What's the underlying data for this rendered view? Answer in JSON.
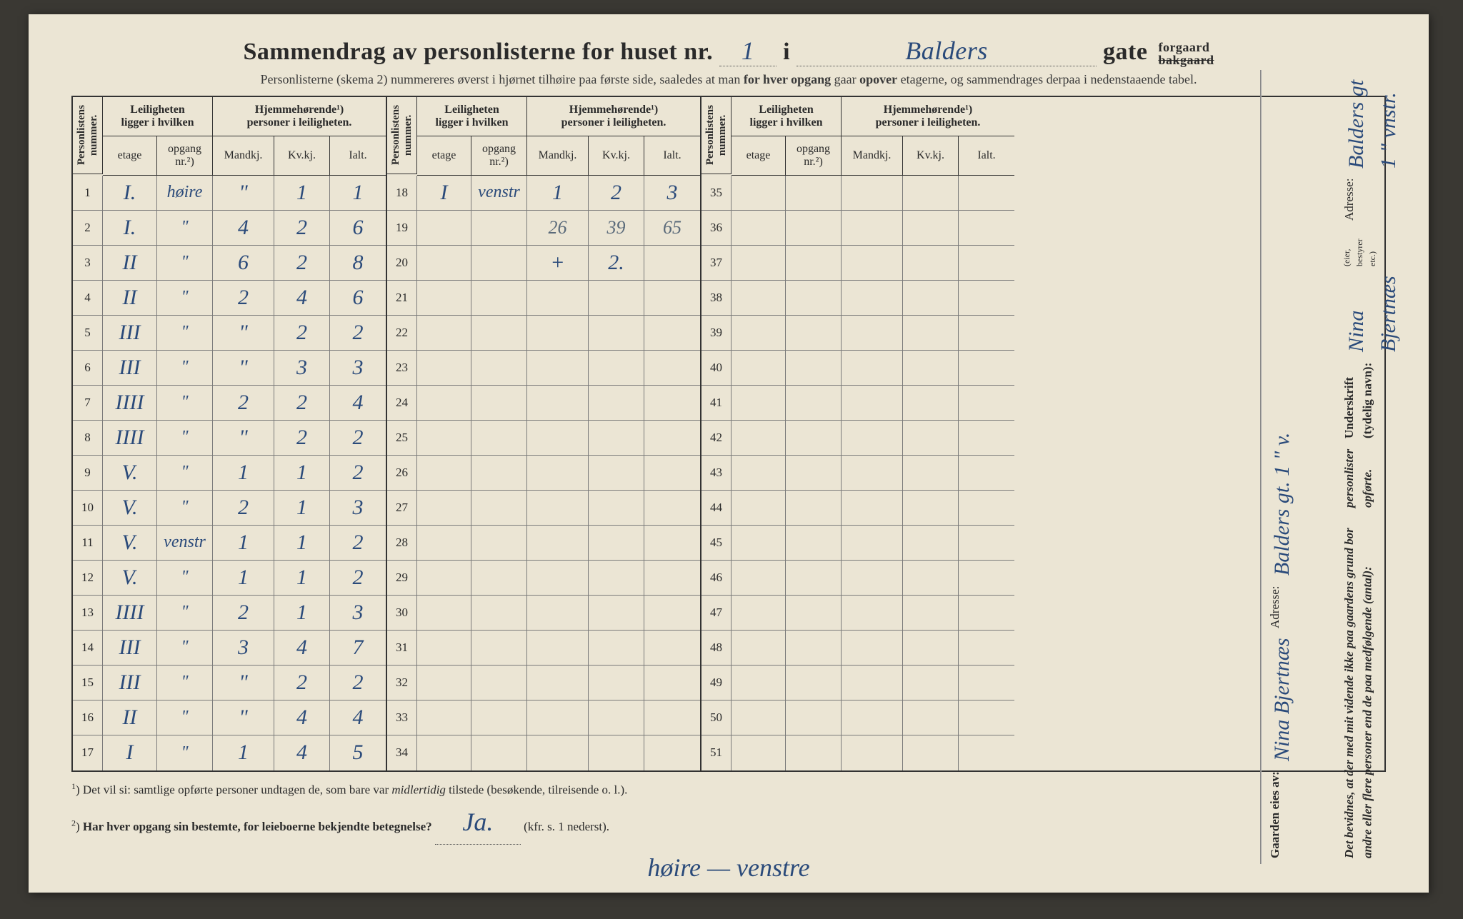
{
  "header": {
    "title_prefix": "Sammendrag av personlisterne for huset nr.",
    "house_nr": "1",
    "middle_word": "i",
    "street": "Balders",
    "gate_word": "gate",
    "suffix_top": "forgaard",
    "suffix_bottom": "bakgaard",
    "subtitle_1": "Personlisterne (skema 2) nummereres øverst i hjørnet tilhøire paa første side, saaledes at man ",
    "subtitle_bold_1": "for hver opgang",
    "subtitle_2": " gaar ",
    "subtitle_bold_2": "opover",
    "subtitle_3": " etagerne, og sammendrages derpaa i nedenstaaende tabel."
  },
  "columns": {
    "personlistens": "Personlistens\nnummer.",
    "leiligheten_group": "Leiligheten\nligger i hvilken",
    "hjemme_group": "Hjemmehørende¹)\npersoner i leiligheten.",
    "etage": "etage",
    "opgang": "opgang\nnr.²)",
    "mandkj": "Mandkj.",
    "kvkj": "Kv.kj.",
    "ialt": "Ialt."
  },
  "blocks": [
    {
      "start": 1,
      "rows": [
        {
          "n": "1",
          "et": "I.",
          "op": "høire",
          "mk": "\"",
          "kv": "1",
          "ia": "1"
        },
        {
          "n": "2",
          "et": "I.",
          "op": "\"",
          "mk": "4",
          "kv": "2",
          "ia": "6"
        },
        {
          "n": "3",
          "et": "II",
          "op": "\"",
          "mk": "6",
          "kv": "2",
          "ia": "8"
        },
        {
          "n": "4",
          "et": "II",
          "op": "\"",
          "mk": "2",
          "kv": "4",
          "ia": "6"
        },
        {
          "n": "5",
          "et": "III",
          "op": "\"",
          "mk": "\"",
          "kv": "2",
          "ia": "2"
        },
        {
          "n": "6",
          "et": "III",
          "op": "\"",
          "mk": "\"",
          "kv": "3",
          "ia": "3"
        },
        {
          "n": "7",
          "et": "IIII",
          "op": "\"",
          "mk": "2",
          "kv": "2",
          "ia": "4"
        },
        {
          "n": "8",
          "et": "IIII",
          "op": "\"",
          "mk": "\"",
          "kv": "2",
          "ia": "2"
        },
        {
          "n": "9",
          "et": "V.",
          "op": "\"",
          "mk": "1",
          "kv": "1",
          "ia": "2"
        },
        {
          "n": "10",
          "et": "V.",
          "op": "\"",
          "mk": "2",
          "kv": "1",
          "ia": "3"
        },
        {
          "n": "11",
          "et": "V.",
          "op": "venstr",
          "mk": "1",
          "kv": "1",
          "ia": "2"
        },
        {
          "n": "12",
          "et": "V.",
          "op": "\"",
          "mk": "1",
          "kv": "1",
          "ia": "2"
        },
        {
          "n": "13",
          "et": "IIII",
          "op": "\"",
          "mk": "2",
          "kv": "1",
          "ia": "3"
        },
        {
          "n": "14",
          "et": "III",
          "op": "\"",
          "mk": "3",
          "kv": "4",
          "ia": "7"
        },
        {
          "n": "15",
          "et": "III",
          "op": "\"",
          "mk": "\"",
          "kv": "2",
          "ia": "2"
        },
        {
          "n": "16",
          "et": "II",
          "op": "\"",
          "mk": "\"",
          "kv": "4",
          "ia": "4"
        },
        {
          "n": "17",
          "et": "I",
          "op": "\"",
          "mk": "1",
          "kv": "4",
          "ia": "5"
        }
      ]
    },
    {
      "start": 18,
      "rows": [
        {
          "n": "18",
          "et": "I",
          "op": "venstr",
          "mk": "1",
          "kv": "2",
          "ia": "3"
        },
        {
          "n": "19",
          "et": "",
          "op": "",
          "mk": "26",
          "kv": "39",
          "ia": "65",
          "sum": true
        },
        {
          "n": "20",
          "et": "",
          "op": "",
          "mk": "+",
          "kv": "2.",
          "ia": ""
        },
        {
          "n": "21"
        },
        {
          "n": "22"
        },
        {
          "n": "23"
        },
        {
          "n": "24"
        },
        {
          "n": "25"
        },
        {
          "n": "26"
        },
        {
          "n": "27"
        },
        {
          "n": "28"
        },
        {
          "n": "29"
        },
        {
          "n": "30"
        },
        {
          "n": "31"
        },
        {
          "n": "32"
        },
        {
          "n": "33"
        },
        {
          "n": "34"
        }
      ]
    },
    {
      "start": 35,
      "rows": [
        {
          "n": "35"
        },
        {
          "n": "36"
        },
        {
          "n": "37"
        },
        {
          "n": "38"
        },
        {
          "n": "39"
        },
        {
          "n": "40"
        },
        {
          "n": "41"
        },
        {
          "n": "42"
        },
        {
          "n": "43"
        },
        {
          "n": "44"
        },
        {
          "n": "45"
        },
        {
          "n": "46"
        },
        {
          "n": "47"
        },
        {
          "n": "48"
        },
        {
          "n": "49"
        },
        {
          "n": "50"
        },
        {
          "n": "51"
        }
      ]
    }
  ],
  "footnotes": {
    "f1": "Det vil si: samtlige opførte personer undtagen de, som bare var ",
    "f1_italic": "midlertidig",
    "f1_after": " tilstede (besøkende, tilreisende o. l.).",
    "f2_bold": "Har hver opgang sin bestemte, for leieboerne bekjendte betegnelse?",
    "f2_answer": "Ja.",
    "f2_tail": "(kfr. s. 1 nederst).",
    "bottom_hw": "høire — venstre"
  },
  "side": {
    "gaarden_label": "Gaarden eies av:",
    "owner": "Nina Bjertnæs",
    "adresse_label": "Adresse:",
    "adresse_1": "Balders gt. 1 \" v.",
    "bevidnes": "Det bevidnes, at der med mit vidende ikke paa gaardens grund bor andre eller flere personer end de paa medfølgende (antal):",
    "personlister": "personlister opførte.",
    "underskrift_label": "Underskrift (tydelig navn):",
    "signature": "Nina Bjertnæs",
    "small_note": "(eier, bestyrer etc.)",
    "adresse_2": "Balders gt 1 \" vnstr."
  },
  "style": {
    "paper_bg": "#ebe5d4",
    "ink": "#2a2a2a",
    "pen": "#2a4a7a",
    "rule": "#333333"
  }
}
